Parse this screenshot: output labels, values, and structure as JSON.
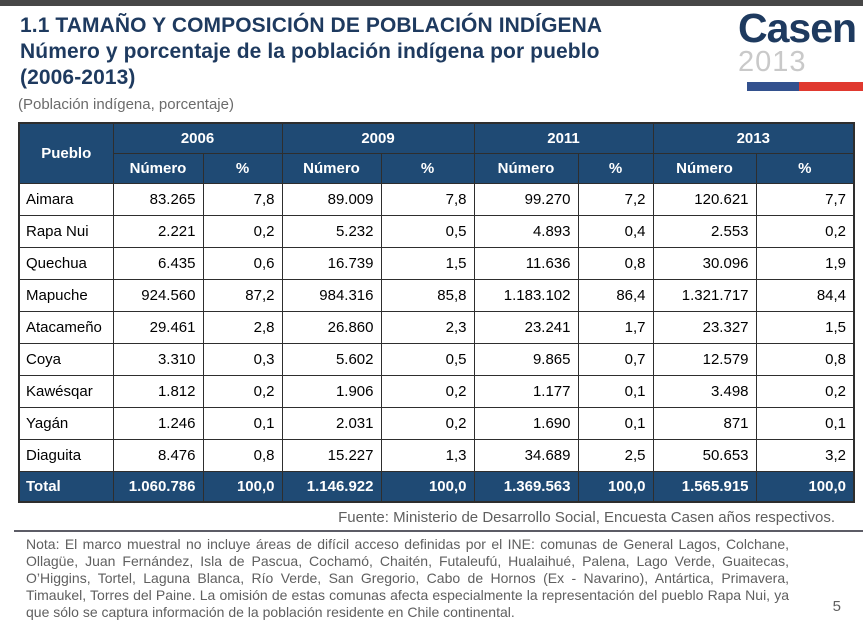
{
  "page": {
    "title_line1": "1.1 TAMAÑO Y COMPOSICIÓN DE POBLACIÓN INDÍGENA",
    "title_line2": "Número y porcentaje de la población indígena por pueblo",
    "title_line3": "(2006-2013)",
    "subtitle": "(Población indígena, porcentaje)",
    "page_number": "5"
  },
  "logo": {
    "name": "Casen",
    "year": "2013"
  },
  "colors": {
    "title_navy": "#1e3a5f",
    "table_header_blue": "#1f4a74",
    "flag_blue": "#33518e",
    "flag_red": "#e0392f",
    "muted_gray": "#5f5f5f",
    "top_strip": "#474747"
  },
  "table": {
    "pueblo_header": "Pueblo",
    "year_groups": [
      {
        "year": "2006",
        "col1": "Número",
        "col2": "%"
      },
      {
        "year": "2009",
        "col1": "Número",
        "col2": "%"
      },
      {
        "year": "2011",
        "col1": "Número",
        "col2": "%"
      },
      {
        "year": "2013",
        "col1": "Número",
        "col2": "%"
      }
    ],
    "rows": [
      {
        "pueblo": "Aimara",
        "values": [
          "83.265",
          "7,8",
          "89.009",
          "7,8",
          "99.270",
          "7,2",
          "120.621",
          "7,7"
        ]
      },
      {
        "pueblo": "Rapa Nui",
        "values": [
          "2.221",
          "0,2",
          "5.232",
          "0,5",
          "4.893",
          "0,4",
          "2.553",
          "0,2"
        ]
      },
      {
        "pueblo": "Quechua",
        "values": [
          "6.435",
          "0,6",
          "16.739",
          "1,5",
          "11.636",
          "0,8",
          "30.096",
          "1,9"
        ]
      },
      {
        "pueblo": "Mapuche",
        "values": [
          "924.560",
          "87,2",
          "984.316",
          "85,8",
          "1.183.102",
          "86,4",
          "1.321.717",
          "84,4"
        ]
      },
      {
        "pueblo": "Atacameño",
        "values": [
          "29.461",
          "2,8",
          "26.860",
          "2,3",
          "23.241",
          "1,7",
          "23.327",
          "1,5"
        ]
      },
      {
        "pueblo": "Coya",
        "values": [
          "3.310",
          "0,3",
          "5.602",
          "0,5",
          "9.865",
          "0,7",
          "12.579",
          "0,8"
        ]
      },
      {
        "pueblo": "Kawésqar",
        "values": [
          "1.812",
          "0,2",
          "1.906",
          "0,2",
          "1.177",
          "0,1",
          "3.498",
          "0,2"
        ]
      },
      {
        "pueblo": "Yagán",
        "values": [
          "1.246",
          "0,1",
          "2.031",
          "0,2",
          "1.690",
          "0,1",
          "871",
          "0,1"
        ]
      },
      {
        "pueblo": "Diaguita",
        "values": [
          "8.476",
          "0,8",
          "15.227",
          "1,3",
          "34.689",
          "2,5",
          "50.653",
          "3,2"
        ]
      }
    ],
    "total": {
      "pueblo": "Total",
      "values": [
        "1.060.786",
        "100,0",
        "1.146.922",
        "100,0",
        "1.369.563",
        "100,0",
        "1.565.915",
        "100,0"
      ]
    }
  },
  "footer": {
    "fuente": "Fuente: Ministerio de Desarrollo Social, Encuesta Casen años respectivos.",
    "nota": "Nota: El marco muestral no incluye áreas de difícil acceso definidas por el INE: comunas de General Lagos, Colchane, Ollagüe, Juan Fernández, Isla de Pascua, Cochamó, Chaitén, Futaleufú, Hualaihué, Palena, Lago Verde, Guaitecas, O’Higgins, Tortel, Laguna Blanca, Río Verde, San Gregorio, Cabo de Hornos (Ex - Navarino), Antártica, Primavera, Timaukel, Torres del Paine. La omisión de estas comunas afecta especialmente la representación del pueblo Rapa Nui, ya que sólo se captura información de la población residente en Chile continental."
  }
}
